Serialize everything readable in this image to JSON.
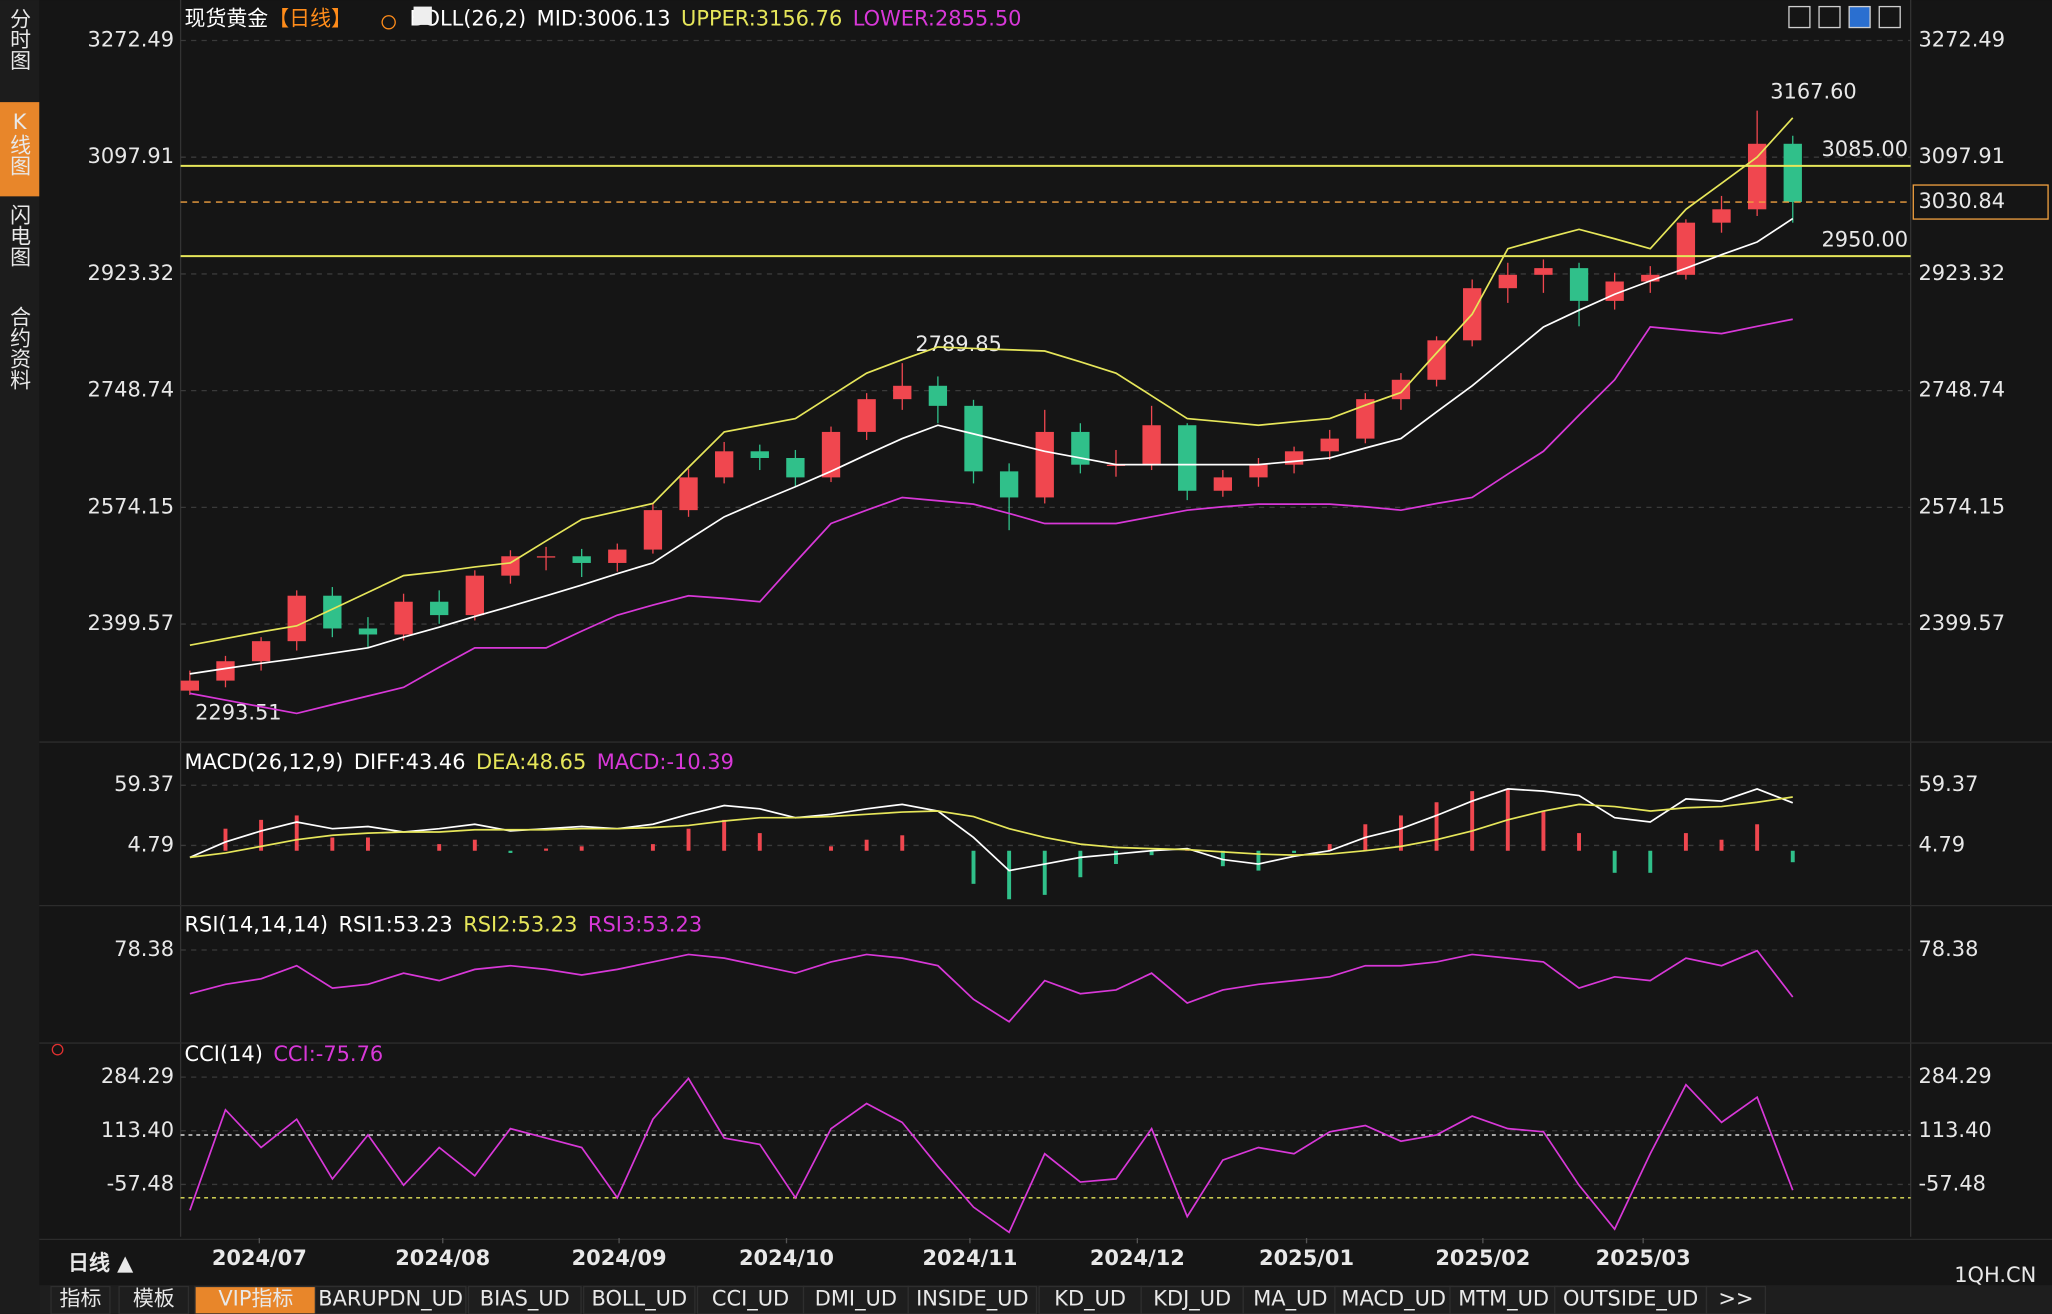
{
  "sidebar": [
    "分时图",
    "K线图",
    "闪电图",
    "合约资料"
  ],
  "x_axis": {
    "xlim": [
      -0.26,
      48.31
    ],
    "xticks": [
      {
        "value": 1.95,
        "label": "2024/07"
      },
      {
        "value": 7.1,
        "label": "2024/08"
      },
      {
        "value": 12.05,
        "label": "2024/09"
      },
      {
        "value": 16.75,
        "label": "2024/10"
      },
      {
        "value": 21.9,
        "label": "2024/11"
      },
      {
        "value": 26.6,
        "label": "2024/12"
      },
      {
        "value": 31.35,
        "label": "2025/01"
      },
      {
        "value": 36.3,
        "label": "2025/02"
      },
      {
        "value": 40.8,
        "label": "2025/03"
      }
    ]
  },
  "chart_data": [
    {
      "type": "candlestick",
      "title": "现货黄金",
      "period": "【日线】",
      "indicator": "BOLL(26,2)",
      "up_color": "#f0474f",
      "down_color": "#30c08a",
      "ohlc": [
        [
          2300,
          2330,
          2293.51,
          2315
        ],
        [
          2315,
          2352,
          2305,
          2344
        ],
        [
          2344,
          2380,
          2330,
          2374
        ],
        [
          2374,
          2450,
          2360,
          2442
        ],
        [
          2442,
          2455,
          2380,
          2393
        ],
        [
          2393,
          2410,
          2365,
          2384
        ],
        [
          2384,
          2445,
          2375,
          2433
        ],
        [
          2433,
          2450,
          2400,
          2413
        ],
        [
          2413,
          2480,
          2405,
          2472
        ],
        [
          2472,
          2510,
          2460,
          2501
        ],
        [
          2501,
          2515,
          2480,
          2501
        ],
        [
          2501,
          2512,
          2470,
          2491
        ],
        [
          2491,
          2520,
          2478,
          2511
        ],
        [
          2511,
          2580,
          2505,
          2570
        ],
        [
          2570,
          2632,
          2560,
          2619
        ],
        [
          2619,
          2672,
          2610,
          2658
        ],
        [
          2658,
          2668,
          2630,
          2648
        ],
        [
          2648,
          2660,
          2605,
          2619
        ],
        [
          2619,
          2695,
          2612,
          2687
        ],
        [
          2687,
          2745,
          2675,
          2736
        ],
        [
          2736,
          2789.85,
          2720,
          2756
        ],
        [
          2756,
          2770,
          2700,
          2726
        ],
        [
          2726,
          2735,
          2610,
          2628
        ],
        [
          2628,
          2640,
          2540,
          2589
        ],
        [
          2589,
          2720,
          2580,
          2687
        ],
        [
          2687,
          2700,
          2625,
          2638
        ],
        [
          2638,
          2660,
          2620,
          2638
        ],
        [
          2638,
          2726,
          2630,
          2697
        ],
        [
          2697,
          2700,
          2585,
          2599
        ],
        [
          2599,
          2630,
          2590,
          2619
        ],
        [
          2619,
          2648,
          2605,
          2638
        ],
        [
          2638,
          2665,
          2625,
          2658
        ],
        [
          2658,
          2690,
          2645,
          2677
        ],
        [
          2677,
          2745,
          2670,
          2736
        ],
        [
          2736,
          2775,
          2720,
          2765
        ],
        [
          2765,
          2830,
          2755,
          2824
        ],
        [
          2824,
          2915,
          2815,
          2902
        ],
        [
          2902,
          2940,
          2880,
          2922
        ],
        [
          2922,
          2945,
          2895,
          2932
        ],
        [
          2932,
          2940,
          2845,
          2883
        ],
        [
          2883,
          2925,
          2870,
          2912
        ],
        [
          2912,
          2935,
          2895,
          2922
        ],
        [
          2922,
          3005,
          2915,
          3000
        ],
        [
          3000,
          3040,
          2985,
          3020
        ],
        [
          3020,
          3167.6,
          3010,
          3118
        ],
        [
          3118,
          3130,
          3000,
          3030.84
        ]
      ],
      "series": [
        {
          "name": "MID:3006.13",
          "color": "#ffffff",
          "values": [
            2325,
            2333,
            2341,
            2348,
            2356,
            2364,
            2380,
            2395,
            2411,
            2426,
            2442,
            2458,
            2475,
            2491,
            2526,
            2560,
            2583,
            2605,
            2628,
            2653,
            2677,
            2697,
            2684,
            2671,
            2658,
            2648,
            2638,
            2638,
            2638,
            2638,
            2638,
            2643,
            2648,
            2663,
            2677,
            2717,
            2756,
            2800,
            2844,
            2869,
            2893,
            2913,
            2932,
            2952,
            2971,
            3006.13
          ]
        },
        {
          "name": "UPPER:3156.76",
          "color": "#e6e65a",
          "values": [
            2368,
            2378,
            2388,
            2397,
            2422,
            2447,
            2472,
            2478,
            2485,
            2491,
            2524,
            2556,
            2568,
            2580,
            2634,
            2687,
            2697,
            2707,
            2741,
            2775,
            2795,
            2814,
            2812,
            2810,
            2808,
            2792,
            2775,
            2741,
            2707,
            2702,
            2697,
            2702,
            2707,
            2727,
            2746,
            2805,
            2863,
            2961,
            2976,
            2990,
            2976,
            2961,
            3020,
            3059,
            3098,
            3156.76
          ]
        },
        {
          "name": "LOWER:2855.50",
          "color": "#d838d8",
          "values": [
            2296,
            2286,
            2276,
            2266,
            2279,
            2292,
            2305,
            2335,
            2364,
            2364,
            2364,
            2389,
            2413,
            2428,
            2442,
            2438,
            2433,
            2492,
            2550,
            2570,
            2589,
            2584,
            2579,
            2565,
            2550,
            2550,
            2550,
            2560,
            2570,
            2575,
            2579,
            2579,
            2579,
            2575,
            2570,
            2580,
            2589,
            2624,
            2658,
            2712,
            2765,
            2844,
            2839,
            2834,
            2845,
            2855.5
          ]
        }
      ],
      "ylim": [
        2227,
        3333
      ],
      "yticks": [
        3272.49,
        3097.91,
        2923.32,
        2748.74,
        2574.15,
        2399.57
      ],
      "levels": [
        {
          "value": 3085,
          "label": "3085.00",
          "color": "#e6e65a"
        },
        {
          "value": 2950,
          "label": "2950.00",
          "color": "#e6e65a"
        }
      ],
      "last_price": {
        "value": 3030.84,
        "label": "3030.84",
        "color": "#f0a040"
      },
      "annotations": [
        {
          "value": 3167.6,
          "label": "3167.60"
        },
        {
          "value": 2789.85,
          "label": "2789.85"
        },
        {
          "value": 2293.51,
          "label": "2293.51"
        }
      ]
    },
    {
      "type": "macd",
      "indicator": "MACD(26,12,9)",
      "series": [
        {
          "name": "DIFF:43.46",
          "color": "#ffffff",
          "values": [
            -6,
            8,
            18,
            26,
            20,
            22,
            17,
            20,
            24,
            18,
            20,
            22,
            20,
            24,
            33,
            41,
            38,
            30,
            33,
            38,
            42,
            36,
            12,
            -18,
            -12,
            -6,
            -3,
            0,
            2,
            -8,
            -12,
            -5,
            0,
            12,
            20,
            32,
            45,
            56,
            54,
            50,
            30,
            26,
            47,
            45,
            56,
            43.46
          ]
        },
        {
          "name": "DEA:48.65",
          "color": "#e6e65a",
          "values": [
            -6,
            -2,
            4,
            10,
            14,
            16,
            17,
            17,
            19,
            19,
            19,
            20,
            20,
            21,
            23,
            27,
            30,
            30,
            31,
            33,
            35,
            36,
            31,
            20,
            12,
            6,
            3,
            2,
            1,
            -1,
            -3,
            -4,
            -3,
            0,
            4,
            10,
            18,
            28,
            36,
            42,
            40,
            36,
            39,
            40,
            44,
            48.65
          ]
        }
      ],
      "histogram": {
        "name": "MACD:-10.39",
        "color": "#d838d8",
        "up_color": "#f0474f",
        "down_color": "#30c08a",
        "values": [
          0,
          20,
          28,
          32,
          12,
          12,
          0,
          6,
          10,
          -2,
          2,
          4,
          0,
          6,
          20,
          28,
          16,
          0,
          4,
          10,
          14,
          0,
          -30,
          -44,
          -40,
          -24,
          -12,
          -4,
          2,
          -14,
          -18,
          -2,
          6,
          24,
          32,
          44,
          54,
          56,
          36,
          16,
          -20,
          -20,
          16,
          10,
          24,
          -10.39
        ]
      },
      "ylim": [
        -47.4,
        94.97
      ],
      "yticks": [
        59.37,
        4.79
      ]
    },
    {
      "type": "line",
      "indicator": "RSI(14,14,14)",
      "legend_extra": [
        {
          "name": "RSI1:53.23",
          "color": "#ffffff"
        },
        {
          "name": "RSI2:53.23",
          "color": "#e6e65a"
        }
      ],
      "series": [
        {
          "name": "RSI3:53.23",
          "color": "#d838d8",
          "values": [
            55,
            60,
            63,
            70,
            58,
            60,
            66,
            62,
            68,
            70,
            68,
            65,
            68,
            72,
            76,
            74,
            70,
            66,
            72,
            76,
            74,
            70,
            52,
            40,
            62,
            55,
            57,
            66,
            50,
            57,
            60,
            62,
            64,
            70,
            70,
            72,
            76,
            74,
            72,
            58,
            64,
            62,
            74,
            70,
            78,
            53.23
          ]
        }
      ],
      "ylim": [
        30,
        100
      ],
      "yticks": [
        78.38
      ]
    },
    {
      "type": "line",
      "indicator": "CCI(14)",
      "series": [
        {
          "name": "CCI:-75.76",
          "color": "#d838d8",
          "values": [
            -140,
            180,
            60,
            150,
            -40,
            100,
            -60,
            60,
            -30,
            120,
            90,
            60,
            -100,
            150,
            280,
            90,
            70,
            -100,
            120,
            200,
            140,
            0,
            -130,
            -210,
            40,
            -50,
            -40,
            120,
            -160,
            20,
            60,
            40,
            110,
            130,
            80,
            100,
            160,
            120,
            110,
            -60,
            -200,
            40,
            260,
            140,
            220,
            -75.76
          ]
        }
      ],
      "ref_lines": [
        {
          "value": 100,
          "color": "#ffffff"
        },
        {
          "value": -100,
          "color": "#e6e65a"
        }
      ],
      "ylim": [
        -224,
        401
      ],
      "yticks": [
        284.29,
        {
          "value": 113.4,
          "label": "113.40"
        },
        -57.48
      ]
    }
  ],
  "footer": {
    "period": "日线 ▲",
    "watermark": "1QH.CN"
  },
  "tabs": [
    "指标",
    "模板",
    "VIP指标",
    "BARUPDN_UD",
    "BIAS_UD",
    "BOLL_UD",
    "CCI_UD",
    "DMI_UD",
    "INSIDE_UD",
    "KD_UD",
    "KDJ_UD",
    "MA_UD",
    "MACD_UD",
    "MTM_UD",
    "OUTSIDE_UD",
    ">>"
  ]
}
